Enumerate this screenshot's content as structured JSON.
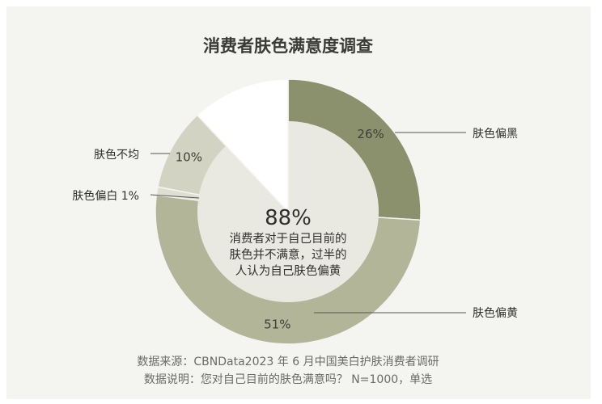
{
  "chart_data": {
    "type": "pie",
    "title": "消费者肤色满意度调查",
    "slices": [
      {
        "label": "肤色偏黑",
        "value": 26,
        "value_label": "26%",
        "color": "#8c916d"
      },
      {
        "label": "肤色偏黄",
        "value": 51,
        "value_label": "51%",
        "color": "#b3b599"
      },
      {
        "label": "肤色偏白 1%",
        "value": 1,
        "value_label": "",
        "color": "#dedfd3"
      },
      {
        "label": "肤色不均",
        "value": 10,
        "value_label": "10%",
        "color": "#d2d3c2"
      },
      {
        "label": "",
        "value": 12,
        "value_label": "",
        "color": "#ffffff"
      }
    ],
    "center": {
      "big": "88%",
      "lines": [
        "消费者对于自己目前的",
        "肤色并不满意，过半的",
        "人认为自己肤色偏黄"
      ]
    }
  },
  "footnotes": {
    "source": "数据来源：CBNData2023 年 6 月中国美白护肤消费者调研",
    "note": "数据说明：您对自己目前的肤色满意吗？ N=1000，单选"
  },
  "colors": {
    "background": "#f4f4f1",
    "center_disc": "#e9e9e2",
    "text": "#2f2f2c"
  }
}
